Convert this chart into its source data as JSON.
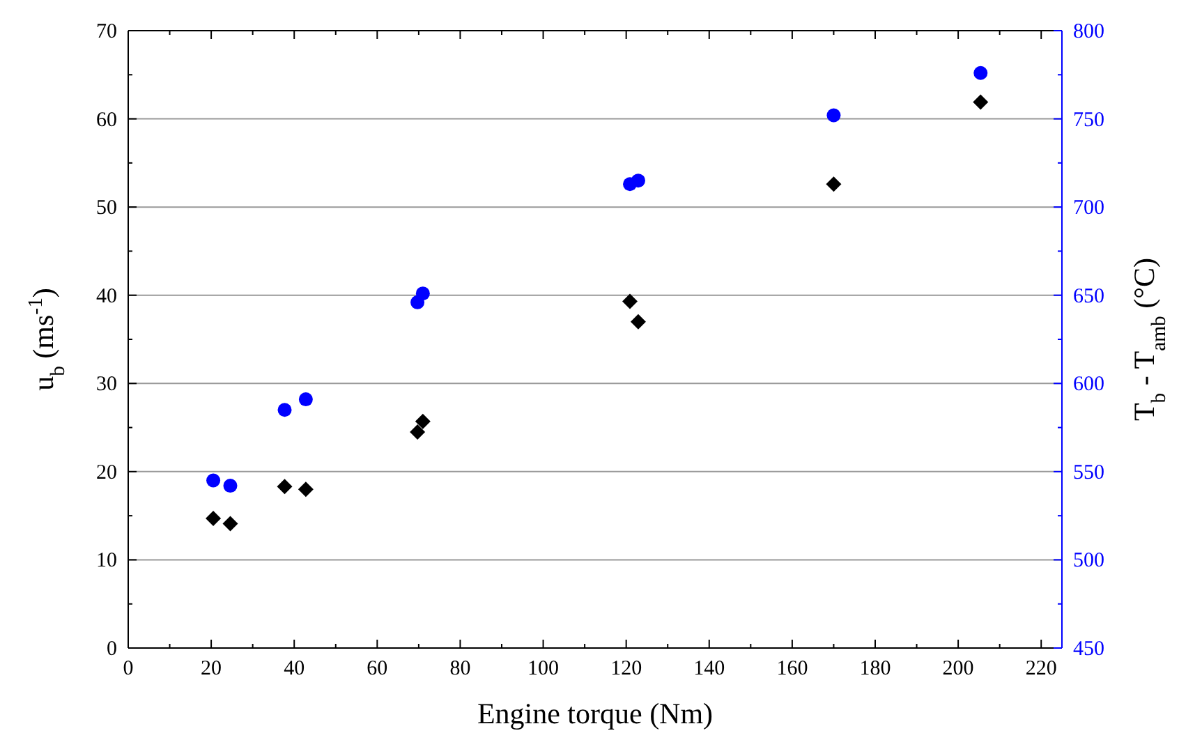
{
  "chart_data": {
    "type": "scatter",
    "xlabel": "Engine torque (Nm)",
    "ylabel": "u$_{b}$ (ms$^{-1}$)",
    "y2label": "T$_{b}$ - T$_{amb}$ (°C)",
    "xlim": [
      0,
      225
    ],
    "xticks": [
      0,
      {
        "value": 10,
        "label": null
      },
      20,
      {
        "value": 30,
        "label": null
      },
      40,
      {
        "value": 50,
        "label": null
      },
      60,
      {
        "value": 70,
        "label": null
      },
      80,
      {
        "value": 90,
        "label": null
      },
      100,
      {
        "value": 110,
        "label": null
      },
      120,
      {
        "value": 130,
        "label": null
      },
      140,
      {
        "value": 150,
        "label": null
      },
      160,
      {
        "value": 170,
        "label": null
      },
      180,
      {
        "value": 190,
        "label": null
      },
      200,
      {
        "value": 210,
        "label": null
      },
      220
    ],
    "ylim": [
      0,
      70
    ],
    "yticks": [
      0,
      10,
      20,
      30,
      40,
      50,
      60,
      70
    ],
    "y2lim": [
      450,
      800
    ],
    "y2ticks": [
      450,
      500,
      550,
      600,
      650,
      700,
      750,
      800
    ],
    "grid": "y",
    "series": [
      {
        "marker": "diamond",
        "color": "#000000",
        "axis": "y",
        "x": [
          20.5,
          24.6,
          37.7,
          42.8,
          69.7,
          71,
          120.9,
          122.9,
          170,
          205.4
        ],
        "values": [
          14.7,
          14.1,
          18.3,
          18.0,
          24.5,
          25.7,
          39.3,
          37.0,
          52.6,
          61.9
        ]
      },
      {
        "marker": "circle",
        "color": "#0000ff",
        "axis": "y2",
        "x": [
          20.5,
          24.6,
          37.7,
          42.8,
          69.7,
          71,
          120.9,
          122.9,
          170,
          205.4
        ],
        "values": [
          545,
          542,
          585,
          591,
          646,
          651,
          713,
          715,
          752,
          776
        ]
      }
    ]
  }
}
